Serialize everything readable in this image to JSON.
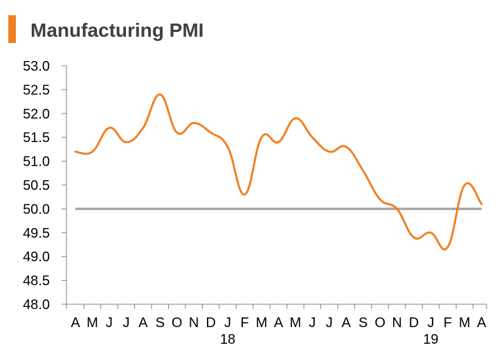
{
  "title": "Manufacturing PMI",
  "colors": {
    "accent": "#f08024",
    "series": "#f08024",
    "reference_line": "#a6a6a6",
    "axis": "#808080",
    "title_text": "#404040"
  },
  "chart_data": {
    "type": "line",
    "title": "Manufacturing PMI",
    "xlabel": "",
    "ylabel": "",
    "ylim": [
      48.0,
      53.0
    ],
    "yticks": [
      "53.0",
      "52.5",
      "52.0",
      "51.5",
      "51.0",
      "50.5",
      "50.0",
      "49.5",
      "49.0",
      "48.5",
      "48.0"
    ],
    "categories": [
      "A",
      "M",
      "J",
      "J",
      "A",
      "S",
      "O",
      "N",
      "D",
      "J",
      "F",
      "M",
      "A",
      "M",
      "J",
      "J",
      "A",
      "S",
      "O",
      "N",
      "D",
      "J",
      "F",
      "M",
      "A"
    ],
    "year_labels": [
      {
        "label": "18",
        "index": 9
      },
      {
        "label": "19",
        "index": 21
      }
    ],
    "series": [
      {
        "name": "Manufacturing PMI",
        "values": [
          51.2,
          51.2,
          51.7,
          51.4,
          51.7,
          52.4,
          51.6,
          51.8,
          51.6,
          51.3,
          50.3,
          51.5,
          51.4,
          51.9,
          51.5,
          51.2,
          51.3,
          50.8,
          50.2,
          50.0,
          49.4,
          49.5,
          49.2,
          50.5,
          50.1
        ]
      }
    ],
    "reference_line": {
      "value": 50.0
    },
    "grid": false,
    "legend": "none"
  }
}
